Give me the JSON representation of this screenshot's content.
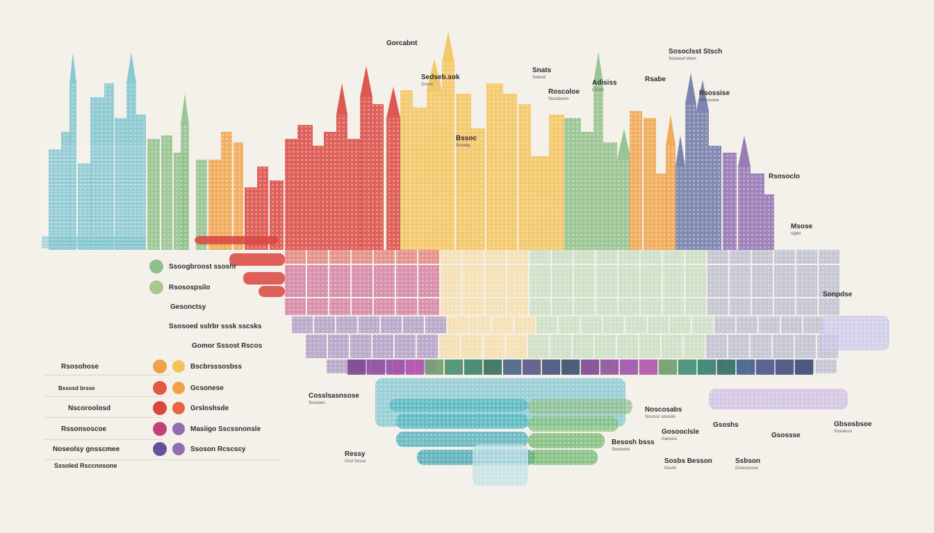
{
  "colors": {
    "background": "#f4f1ea",
    "teal": "#7fc4cf",
    "green": "#8fbf8a",
    "yellow": "#f3c35a",
    "orange": "#f0a24a",
    "red": "#d9473f",
    "magenta": "#c2407a",
    "purple": "#8e6fb0",
    "slate": "#6f78a8",
    "lavender": "#b9a6cf"
  },
  "top_labels": [
    {
      "title": "Gorcabnt",
      "sub": ""
    },
    {
      "title": "Sedseb.sok",
      "sub": "Gosos"
    },
    {
      "title": "Snats",
      "sub": "Sotesd"
    },
    {
      "title": "Adisiss",
      "sub": "Cicvrn"
    },
    {
      "title": "Rsabe",
      "sub": ""
    },
    {
      "title": "Sosoclsst Stsch",
      "sub": "Sooseud sloon"
    },
    {
      "title": "Roscoloe",
      "sub": "Soclsbsom"
    },
    {
      "title": "Rsossise",
      "sub": "Swsosowe"
    },
    {
      "title": "Bssoc",
      "sub": "Sosebg"
    },
    {
      "title": "Rsosoclo",
      "sub": ""
    },
    {
      "title": "Msose",
      "sub": "siglet"
    },
    {
      "title": "Sonpdse",
      "sub": ""
    }
  ],
  "left_legend": [
    {
      "label": "Ssoogbroost ssoshr"
    },
    {
      "label": "Rsosospsilo"
    },
    {
      "label": "Gesonctsy"
    },
    {
      "label": "Ssosoed sslrbr sssk sscsks"
    },
    {
      "label": "Gomor Sssost Rscos"
    }
  ],
  "bottom_legend": [
    {
      "label": "Rsosohose",
      "item": "Bscbrsssosbss"
    },
    {
      "label": "Bssosd brsse",
      "item": "Gcsonese"
    },
    {
      "label": "Nscoroolosd",
      "item": "Grsloshsde"
    },
    {
      "label": "Rssonsoscoe",
      "item": "Masiigo Sscssnonsle"
    },
    {
      "label": "Noseolsy gnsscmee",
      "item": "Ssoson Rcscscy"
    },
    {
      "label": "Sssoled Rsccnosone",
      "item": ""
    }
  ],
  "bottom_labels": [
    {
      "title": "Cosslsasnsose",
      "sub": "Sooseen"
    },
    {
      "title": "Ressy",
      "sub": "Osst Sosss"
    },
    {
      "title": "Noscosabs",
      "sub": "Sosrsoc sosocle"
    },
    {
      "title": "Gosooclsle",
      "sub": "Garoscs"
    },
    {
      "title": "Besosh bsss",
      "sub": "Sosocese"
    },
    {
      "title": "Gsoshs",
      "sub": ""
    },
    {
      "title": "Sosbs Besson",
      "sub": "Gsssh"
    },
    {
      "title": "Ssbson",
      "sub": "Gsscoscose"
    },
    {
      "title": "Gsossse",
      "sub": ""
    },
    {
      "title": "Gbsosbsoe",
      "sub": "Sosoecss"
    }
  ]
}
